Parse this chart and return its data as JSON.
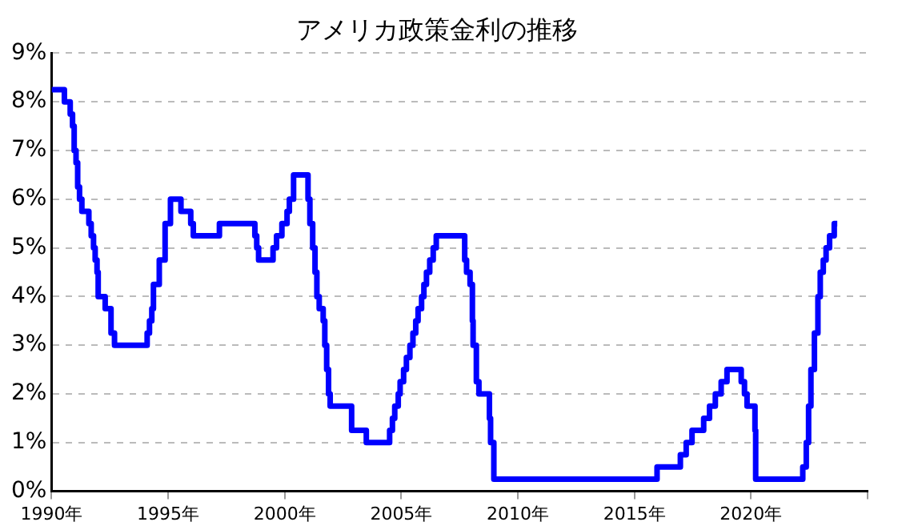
{
  "chart_data": {
    "type": "step",
    "title": "アメリカ政策金利の推移",
    "x": [
      1990.0,
      1990.55,
      1990.8,
      1990.9,
      1990.97,
      1991.05,
      1991.12,
      1991.2,
      1991.3,
      1991.6,
      1991.7,
      1991.8,
      1991.87,
      1991.95,
      1992.0,
      1992.3,
      1992.55,
      1992.7,
      1994.1,
      1994.2,
      1994.3,
      1994.37,
      1994.62,
      1994.87,
      1995.1,
      1995.55,
      1995.97,
      1996.08,
      1997.2,
      1998.72,
      1998.8,
      1998.88,
      1999.5,
      1999.65,
      1999.88,
      2000.1,
      2000.2,
      2000.38,
      2001.0,
      2001.08,
      2001.2,
      2001.3,
      2001.38,
      2001.48,
      2001.65,
      2001.72,
      2001.8,
      2001.88,
      2001.95,
      2002.87,
      2003.5,
      2004.5,
      2004.62,
      2004.72,
      2004.87,
      2004.95,
      2005.1,
      2005.22,
      2005.37,
      2005.5,
      2005.62,
      2005.72,
      2005.87,
      2005.97,
      2006.08,
      2006.22,
      2006.37,
      2006.5,
      2007.72,
      2007.8,
      2007.95,
      2008.05,
      2008.08,
      2008.22,
      2008.33,
      2008.78,
      2008.83,
      2008.97,
      2015.97,
      2016.97,
      2017.22,
      2017.47,
      2017.97,
      2018.22,
      2018.47,
      2018.72,
      2018.97,
      2019.58,
      2019.72,
      2019.83,
      2020.17,
      2020.2,
      2022.22,
      2022.37,
      2022.47,
      2022.57,
      2022.72,
      2022.87,
      2022.97,
      2023.1,
      2023.22,
      2023.37,
      2023.57,
      2023.7
    ],
    "series": [
      {
        "color": "#0000ff",
        "values": [
          8.25,
          8.0,
          7.75,
          7.5,
          7.0,
          6.75,
          6.25,
          6.0,
          5.75,
          5.5,
          5.25,
          5.0,
          4.75,
          4.5,
          4.0,
          3.75,
          3.25,
          3.0,
          3.25,
          3.5,
          3.75,
          4.25,
          4.75,
          5.5,
          6.0,
          5.75,
          5.5,
          5.25,
          5.5,
          5.25,
          5.0,
          4.75,
          5.0,
          5.25,
          5.5,
          5.75,
          6.0,
          6.5,
          6.0,
          5.5,
          5.0,
          4.5,
          4.0,
          3.75,
          3.5,
          3.0,
          2.5,
          2.0,
          1.75,
          1.25,
          1.0,
          1.25,
          1.5,
          1.75,
          2.0,
          2.25,
          2.5,
          2.75,
          3.0,
          3.25,
          3.5,
          3.75,
          4.0,
          4.25,
          4.5,
          4.75,
          5.0,
          5.25,
          4.75,
          4.5,
          4.25,
          3.5,
          3.0,
          2.25,
          2.0,
          1.5,
          1.0,
          0.25,
          0.5,
          0.75,
          1.0,
          1.25,
          1.5,
          1.75,
          2.0,
          2.25,
          2.5,
          2.25,
          2.0,
          1.75,
          1.25,
          0.25,
          0.5,
          1.0,
          1.75,
          2.5,
          3.25,
          4.0,
          4.5,
          4.75,
          5.0,
          5.25,
          5.5,
          5.5
        ]
      }
    ],
    "xlim": [
      1990,
      2025
    ],
    "xticks": [
      {
        "value": 1990,
        "label": "1990年"
      },
      {
        "value": 1995,
        "label": "1995年"
      },
      {
        "value": 2000,
        "label": "2000年"
      },
      {
        "value": 2005,
        "label": "2005年"
      },
      {
        "value": 2010,
        "label": "2010年"
      },
      {
        "value": 2015,
        "label": "2015年"
      },
      {
        "value": 2020,
        "label": "2020年"
      },
      {
        "value": 2025,
        "label": null
      }
    ],
    "ylim": [
      0,
      9
    ],
    "yticks": [
      {
        "value": 0,
        "label": "0%"
      },
      {
        "value": 1,
        "label": "1%"
      },
      {
        "value": 2,
        "label": "2%"
      },
      {
        "value": 3,
        "label": "3%"
      },
      {
        "value": 4,
        "label": "4%"
      },
      {
        "value": 5,
        "label": "5%"
      },
      {
        "value": 6,
        "label": "6%"
      },
      {
        "value": 7,
        "label": "7%"
      },
      {
        "value": 8,
        "label": "8%"
      },
      {
        "value": 9,
        "label": "9%"
      }
    ],
    "grid": "y",
    "line_style": "solid",
    "marker": "none"
  }
}
